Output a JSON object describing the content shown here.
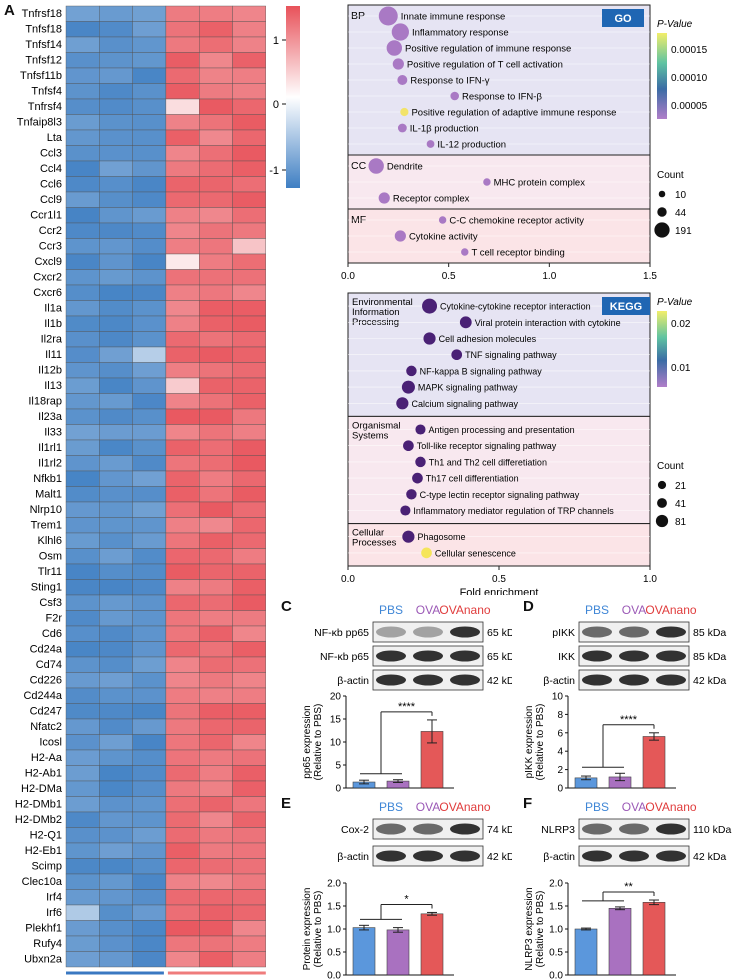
{
  "panels": {
    "A": "A",
    "B": "B",
    "C": "C",
    "D": "D",
    "E": "E",
    "F": "F"
  },
  "heatmap": {
    "genes": [
      "Tnfrsf18",
      "Tnfsf18",
      "Tnfsf14",
      "Tnfsf12",
      "Tnfsf11b",
      "Tnfsf4",
      "Tnfrsf4",
      "Tnfaip8l3",
      "Lta",
      "Ccl3",
      "Ccl4",
      "Ccl6",
      "Ccl9",
      "Ccr1l1",
      "Ccr2",
      "Ccr3",
      "Cxcl9",
      "Cxcr2",
      "Cxcr6",
      "Il1a",
      "Il1b",
      "Il2ra",
      "Il11",
      "Il12b",
      "Il13",
      "Il18rap",
      "Il23a",
      "Il33",
      "Il1rl1",
      "Il1rl2",
      "Nfkb1",
      "Malt1",
      "Nlrp10",
      "Trem1",
      "Klhl6",
      "Osm",
      "Tlr11",
      "Sting1",
      "Csf3",
      "F2r",
      "Cd6",
      "Cd24a",
      "Cd74",
      "Cd226",
      "Cd244a",
      "Cd247",
      "Nfatc2",
      "Icosl",
      "H2-Aa",
      "H2-Ab1",
      "H2-DMa",
      "H2-DMb1",
      "H2-DMb2",
      "H2-Q1",
      "H2-Eb1",
      "Scimp",
      "Clec10a",
      "Irf4",
      "Irf6",
      "Plekhf1",
      "Rufy4",
      "Ubxn2a"
    ],
    "groups": [
      "PBS",
      "OVAnano"
    ],
    "group_colors": [
      "#3a78c2",
      "#ef7c7c"
    ],
    "scale_ticks": [
      "1",
      "0",
      "-1"
    ],
    "low_color": "#3f7fc3",
    "mid_color": "#ffffff",
    "high_color": "#e8525a"
  },
  "go": {
    "badge": "GO",
    "legend_title": "P-Value",
    "legend_ticks": [
      "0.00015",
      "0.00010",
      "0.00005"
    ],
    "count_title": "Count",
    "count_values": [
      "10",
      "44",
      "191"
    ],
    "sections": [
      {
        "label": "BP",
        "terms": [
          {
            "name": "Innate immune response",
            "x": 0.2,
            "count": 191,
            "p": 3e-05
          },
          {
            "name": "Inflammatory response",
            "x": 0.26,
            "count": 150,
            "p": 3e-05
          },
          {
            "name": "Positive regulation of immune response",
            "x": 0.23,
            "count": 110,
            "p": 4e-05
          },
          {
            "name": "Positive regulation of T cell activation",
            "x": 0.25,
            "count": 44,
            "p": 3e-05
          },
          {
            "name": "Response to IFN-γ",
            "x": 0.27,
            "count": 30,
            "p": 3e-05
          },
          {
            "name": "Response to IFN-β",
            "x": 0.53,
            "count": 18,
            "p": 3e-05
          },
          {
            "name": "Positive  regulation of adaptive immune response",
            "x": 0.28,
            "count": 15,
            "p": 0.00015
          },
          {
            "name": "IL-1β production",
            "x": 0.27,
            "count": 20,
            "p": 3e-05
          },
          {
            "name": "IL-12 production",
            "x": 0.41,
            "count": 12,
            "p": 3e-05
          }
        ]
      },
      {
        "label": "CC",
        "terms": [
          {
            "name": "Dendrite",
            "x": 0.14,
            "count": 110,
            "p": 3e-05
          },
          {
            "name": "MHC protein complex",
            "x": 0.69,
            "count": 10,
            "p": 3e-05
          },
          {
            "name": "Receptor complex",
            "x": 0.18,
            "count": 44,
            "p": 3e-05
          }
        ]
      },
      {
        "label": "MF",
        "terms": [
          {
            "name": "C-C chemokine receptor activity",
            "x": 0.47,
            "count": 10,
            "p": 3e-05
          },
          {
            "name": "Cytokine activity",
            "x": 0.26,
            "count": 44,
            "p": 3e-05
          },
          {
            "name": "T cell receptor binding",
            "x": 0.58,
            "count": 10,
            "p": 3e-05
          }
        ]
      }
    ],
    "x_ticks": [
      "0.0",
      "0.5",
      "1.0",
      "1.5"
    ]
  },
  "kegg": {
    "badge": "KEGG",
    "legend_title": "P-Value",
    "legend_ticks": [
      "0.02",
      "0.01"
    ],
    "count_title": "Count",
    "count_values": [
      "21",
      "41",
      "81"
    ],
    "sections": [
      {
        "label": "Environmental Information Processing",
        "terms": [
          {
            "name": "Cytokine-cytokine receptor interaction",
            "x": 0.27,
            "count": 81,
            "p": 0.002
          },
          {
            "name": "Viral protein interaction with cytokine",
            "x": 0.39,
            "count": 41,
            "p": 0.002
          },
          {
            "name": "Cell adhesion molecules",
            "x": 0.27,
            "count": 45,
            "p": 0.002
          },
          {
            "name": "TNF signaling pathway",
            "x": 0.36,
            "count": 30,
            "p": 0.002
          },
          {
            "name": "NF-kappa B signaling pathway",
            "x": 0.21,
            "count": 28,
            "p": 0.002
          },
          {
            "name": "MAPK signaling pathway",
            "x": 0.2,
            "count": 55,
            "p": 0.002
          },
          {
            "name": "Calcium signaling pathway",
            "x": 0.18,
            "count": 45,
            "p": 0.002
          }
        ]
      },
      {
        "label": "Organismal Systems",
        "terms": [
          {
            "name": "Antigen processing and presentation",
            "x": 0.24,
            "count": 25,
            "p": 0.002
          },
          {
            "name": "Toll-like receptor signaling pathway",
            "x": 0.2,
            "count": 30,
            "p": 0.002
          },
          {
            "name": "Th1 and Th2 cell differetiation",
            "x": 0.24,
            "count": 28,
            "p": 0.002
          },
          {
            "name": "Th17 cell differentiation",
            "x": 0.23,
            "count": 30,
            "p": 0.002
          },
          {
            "name": "C-type lectin receptor signaling pathway",
            "x": 0.21,
            "count": 28,
            "p": 0.002
          },
          {
            "name": "Inflammatory mediator regulation of TRP channels",
            "x": 0.19,
            "count": 25,
            "p": 0.002
          }
        ]
      },
      {
        "label": "Cellular Processes",
        "terms": [
          {
            "name": "Phagosome",
            "x": 0.2,
            "count": 45,
            "p": 0.002
          },
          {
            "name": "Cellular senescence",
            "x": 0.26,
            "count": 30,
            "p": 0.024
          }
        ]
      }
    ],
    "x_ticks": [
      "0.0",
      "0.5",
      "1.0"
    ],
    "xlabel": "Fold enrichment"
  },
  "western": {
    "groups": [
      "PBS",
      "OVA",
      "OVAnano"
    ],
    "group_colors": [
      "#3f86d6",
      "#9b59b6",
      "#e03c3c"
    ],
    "C": {
      "rows": [
        {
          "label": "NF-κb pp65",
          "kda": "65 kDa"
        },
        {
          "label": "NF-κb p65",
          "kda": "65 kDa"
        },
        {
          "label": "β-actin",
          "kda": "42 kDa"
        }
      ],
      "ylabel": "pp65 expression\n(Relative to PBS)",
      "ylabel1": "pp65 expression",
      "ylabel2": "(Relative to PBS)",
      "yticks": [
        "0",
        "5",
        "10",
        "15",
        "20"
      ],
      "ymax": 20,
      "values": [
        1.3,
        1.5,
        12.3
      ],
      "errors": [
        0.4,
        0.3,
        2.5
      ],
      "sig": "****"
    },
    "D": {
      "rows": [
        {
          "label": "pIKK",
          "kda": "85 kDa"
        },
        {
          "label": "IKK",
          "kda": "85 kDa"
        },
        {
          "label": "β-actin",
          "kda": "42 kDa"
        }
      ],
      "ylabel1": "pIKK expression",
      "ylabel2": "(Relative to PBS)",
      "yticks": [
        "0",
        "2",
        "4",
        "6",
        "8",
        "10"
      ],
      "ymax": 10,
      "values": [
        1.1,
        1.2,
        5.6
      ],
      "errors": [
        0.2,
        0.4,
        0.4
      ],
      "sig": "****"
    },
    "E": {
      "rows": [
        {
          "label": "Cox-2",
          "kda": "74 kDa"
        },
        {
          "label": "β-actin",
          "kda": "42 kDa"
        }
      ],
      "ylabel1": "Protein expression",
      "ylabel2": "(Relative to PBS)",
      "yticks": [
        "0.0",
        "0.5",
        "1.0",
        "1.5",
        "2.0"
      ],
      "ymax": 2.0,
      "values": [
        1.03,
        0.98,
        1.33
      ],
      "errors": [
        0.05,
        0.05,
        0.03
      ],
      "sig": "*"
    },
    "F": {
      "rows": [
        {
          "label": "NLRP3",
          "kda": "110 kDa"
        },
        {
          "label": "β-actin",
          "kda": "42 kDa"
        }
      ],
      "ylabel1": "NLRP3 expression",
      "ylabel2": "(Relative to PBS)",
      "yticks": [
        "0.0",
        "0.5",
        "1.0",
        "1.5",
        "2.0"
      ],
      "ymax": 2.0,
      "values": [
        1.0,
        1.45,
        1.58
      ],
      "errors": [
        0.02,
        0.03,
        0.05
      ],
      "sig": "**"
    }
  }
}
